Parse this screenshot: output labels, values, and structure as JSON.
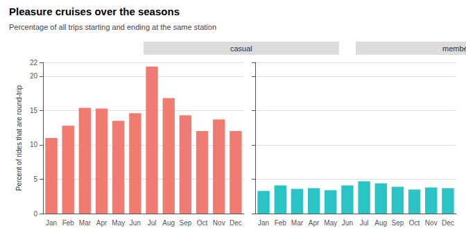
{
  "title": "Pleasure cruises over the seasons",
  "subtitle": "Percentage of all trips starting and ending at the same station",
  "ylabel": "Percent of rides that are round-trip",
  "chart_data": [
    {
      "type": "bar",
      "title": "casual",
      "categories": [
        "Jan",
        "Feb",
        "Mar",
        "Apr",
        "May",
        "Jun",
        "Jul",
        "Aug",
        "Sep",
        "Oct",
        "Nov",
        "Dec"
      ],
      "values": [
        11.0,
        12.8,
        15.4,
        15.3,
        13.5,
        14.6,
        21.4,
        16.8,
        14.3,
        12.0,
        13.7,
        12.0
      ],
      "color": "#F07B72",
      "ylim": [
        0,
        22
      ],
      "yticks": [
        0,
        5,
        10,
        15,
        20
      ],
      "grid": true
    },
    {
      "type": "bar",
      "title": "member",
      "categories": [
        "Jan",
        "Feb",
        "Mar",
        "Apr",
        "May",
        "Jun",
        "Jul",
        "Aug",
        "Sep",
        "Oct",
        "Nov",
        "Dec"
      ],
      "values": [
        3.3,
        4.1,
        3.6,
        3.7,
        3.4,
        4.1,
        4.7,
        4.4,
        3.9,
        3.5,
        3.8,
        3.7
      ],
      "color": "#2BC4C4",
      "ylim": [
        0,
        22
      ],
      "yticks": [
        0,
        5,
        10,
        15,
        20
      ],
      "grid": true,
      "tick_labels": "x"
    }
  ]
}
